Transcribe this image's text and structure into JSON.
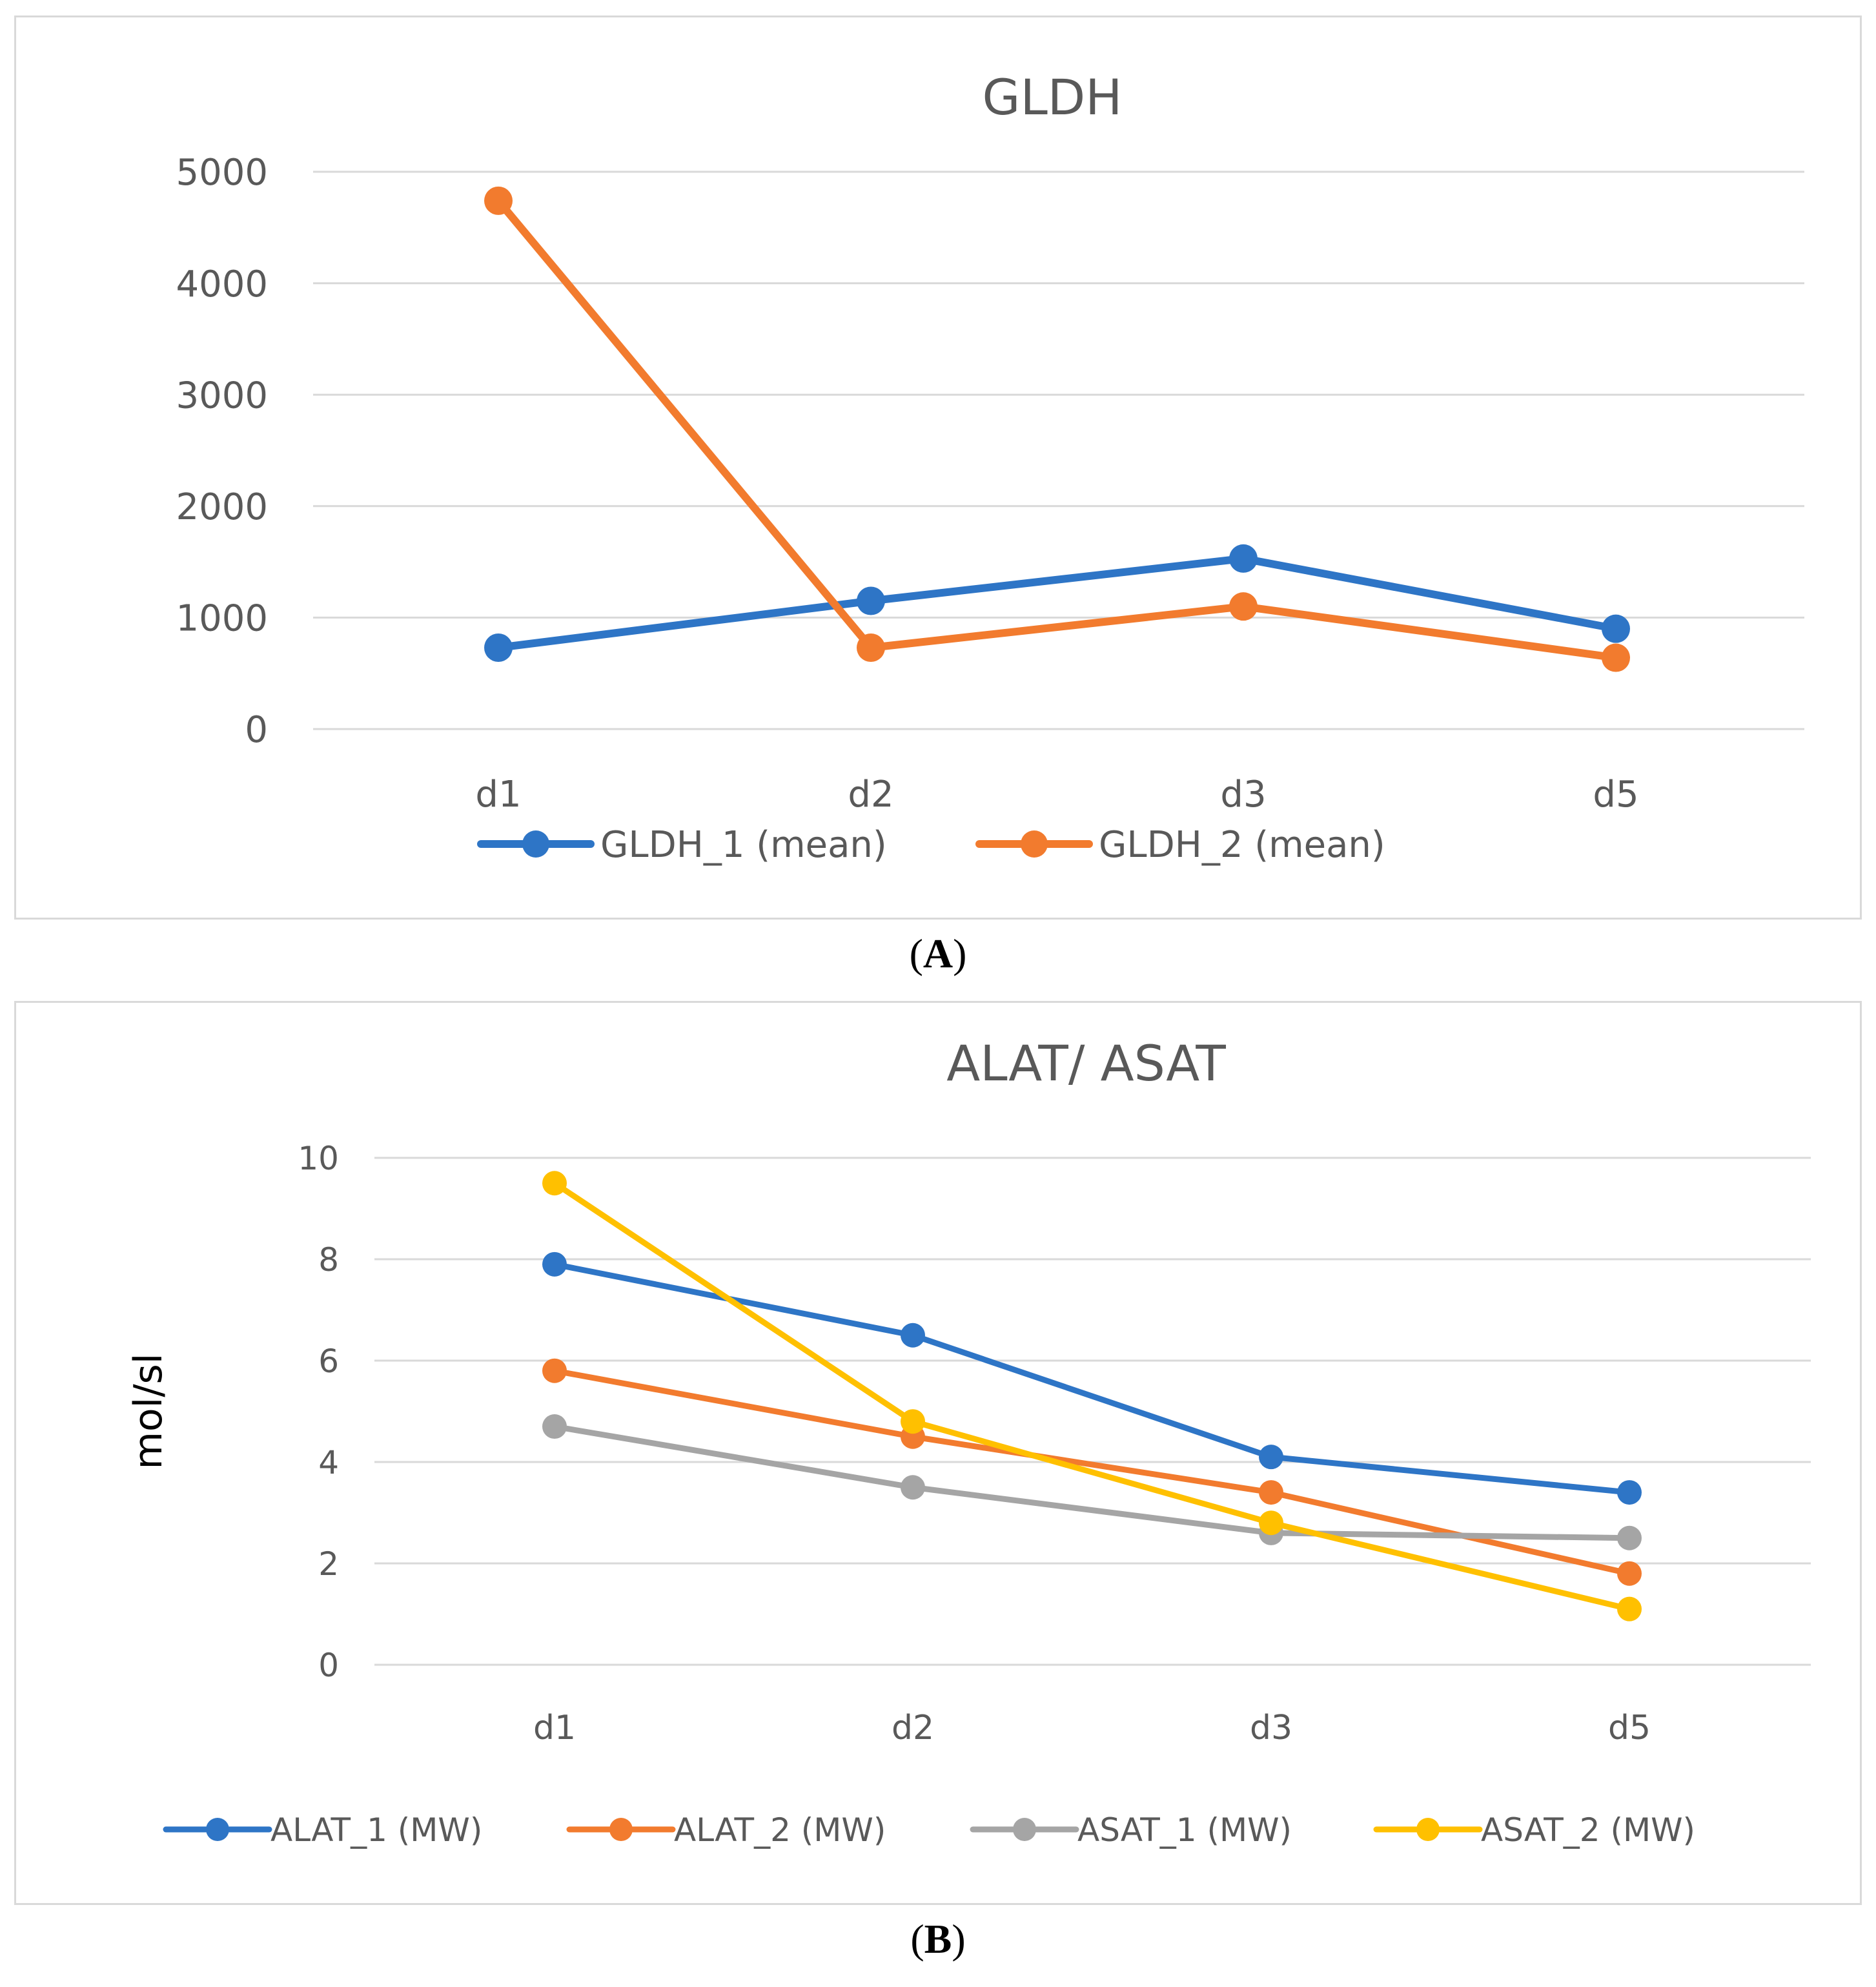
{
  "chart_data": [
    {
      "type": "line",
      "title": "GLDH",
      "xlabel": "",
      "ylabel": "",
      "categories": [
        "d1",
        "d2",
        "d3",
        "d5"
      ],
      "y_ticks": [
        "0",
        "1000",
        "2000",
        "3000",
        "4000",
        "5000"
      ],
      "ylim": [
        0,
        5000
      ],
      "grid": true,
      "legend": "bottom",
      "series": [
        {
          "name": "GLDH_1 (mean)",
          "color": "#2E75C6",
          "values": [
            730,
            1150,
            1530,
            900
          ]
        },
        {
          "name": "GLDH_2 (mean)",
          "color": "#F27B2E",
          "values": [
            4740,
            730,
            1100,
            640
          ]
        }
      ]
    },
    {
      "type": "line",
      "title": "ALAT/ ASAT",
      "xlabel": "",
      "ylabel": "mol/sl",
      "categories": [
        "d1",
        "d2",
        "d3",
        "d5"
      ],
      "y_ticks": [
        "0",
        "2",
        "4",
        "6",
        "8",
        "10"
      ],
      "ylim": [
        0,
        10
      ],
      "grid": true,
      "legend": "bottom",
      "series": [
        {
          "name": "ALAT_1 (MW)",
          "color": "#2E75C6",
          "values": [
            7.9,
            6.5,
            4.1,
            3.4
          ]
        },
        {
          "name": "ALAT_2 (MW)",
          "color": "#F27B2E",
          "values": [
            5.8,
            4.5,
            3.4,
            1.8
          ]
        },
        {
          "name": "ASAT_1 (MW)",
          "color": "#A5A5A5",
          "values": [
            4.7,
            3.5,
            2.6,
            2.5
          ]
        },
        {
          "name": "ASAT_2 (MW)",
          "color": "#FFC000",
          "values": [
            9.5,
            4.8,
            2.8,
            1.1
          ]
        }
      ]
    }
  ],
  "captions": {
    "a": "A",
    "b": "B"
  }
}
